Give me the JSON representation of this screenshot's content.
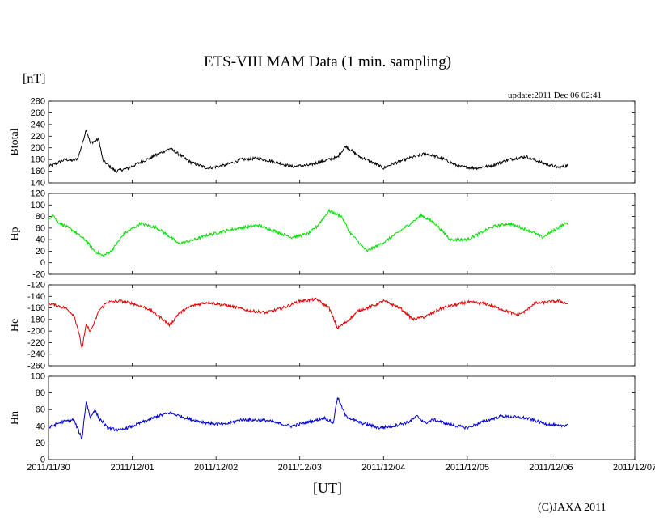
{
  "header": {
    "title": "ETS-VIII MAM Data (1 min. sampling)",
    "unit": "[nT]",
    "update": "update:2011 Dec 06 02:41"
  },
  "footer": {
    "xlabel": "[UT]",
    "copyright": "(C)JAXA 2011"
  },
  "chart_data": {
    "type": "line",
    "x_range": [
      "2011-11-30T00:00",
      "2011-12-07T00:00"
    ],
    "x_ticks": [
      "2011/11/30",
      "2011/12/01",
      "2011/12/02",
      "2011/12/03",
      "2011/12/04",
      "2011/12/05",
      "2011/12/06",
      "2011/12/07"
    ],
    "xlabel": "[UT]",
    "panels": [
      {
        "name": "Btotal",
        "color": "#000000",
        "ylim": [
          140,
          280
        ],
        "yticks": [
          140,
          160,
          180,
          200,
          220,
          240,
          260,
          280
        ],
        "x_days": [
          0,
          0.12,
          0.2,
          0.3,
          0.35,
          0.4,
          0.45,
          0.5,
          0.6,
          0.65,
          0.8,
          0.95,
          1.05,
          1.25,
          1.45,
          1.7,
          1.9,
          2.1,
          2.3,
          2.5,
          2.7,
          2.9,
          3.1,
          3.3,
          3.45,
          3.55,
          3.7,
          3.9,
          4.0,
          4.1,
          4.3,
          4.5,
          4.7,
          4.9,
          5.1,
          5.3,
          5.5,
          5.7,
          5.9,
          6.1,
          6.2
        ],
        "values": [
          168,
          175,
          180,
          178,
          182,
          205,
          232,
          208,
          215,
          178,
          160,
          165,
          172,
          185,
          199,
          175,
          165,
          170,
          180,
          182,
          176,
          168,
          170,
          178,
          184,
          203,
          186,
          173,
          165,
          172,
          182,
          190,
          182,
          168,
          165,
          170,
          180,
          185,
          174,
          166,
          170
        ]
      },
      {
        "name": "Hp",
        "color": "#00e000",
        "ylim": [
          -20,
          120
        ],
        "yticks": [
          -20,
          0,
          20,
          40,
          60,
          80,
          100,
          120
        ],
        "x_days": [
          0,
          0.05,
          0.1,
          0.3,
          0.45,
          0.55,
          0.65,
          0.75,
          0.9,
          1.1,
          1.3,
          1.45,
          1.55,
          1.7,
          1.9,
          2.2,
          2.5,
          2.7,
          2.9,
          3.1,
          3.2,
          3.35,
          3.5,
          3.6,
          3.8,
          4.0,
          4.2,
          4.45,
          4.6,
          4.8,
          5.0,
          5.3,
          5.5,
          5.75,
          5.9,
          6.1,
          6.2
        ],
        "values": [
          72,
          85,
          72,
          55,
          38,
          20,
          12,
          20,
          50,
          68,
          60,
          45,
          33,
          38,
          48,
          58,
          65,
          55,
          44,
          50,
          62,
          90,
          80,
          52,
          20,
          35,
          55,
          82,
          70,
          40,
          40,
          62,
          68,
          55,
          44,
          62,
          70
        ]
      },
      {
        "name": "He",
        "color": "#e00000",
        "ylim": [
          -260,
          -120
        ],
        "yticks": [
          -260,
          -240,
          -220,
          -200,
          -180,
          -160,
          -140,
          -120
        ],
        "x_days": [
          0,
          0.2,
          0.3,
          0.35,
          0.4,
          0.45,
          0.5,
          0.55,
          0.6,
          0.7,
          0.85,
          1.0,
          1.2,
          1.35,
          1.45,
          1.55,
          1.7,
          1.9,
          2.2,
          2.4,
          2.6,
          2.8,
          3.0,
          3.2,
          3.35,
          3.45,
          3.55,
          3.7,
          3.9,
          4.0,
          4.2,
          4.35,
          4.5,
          4.7,
          5.0,
          5.2,
          5.4,
          5.6,
          5.7,
          5.8,
          6.1,
          6.2
        ],
        "values": [
          -152,
          -160,
          -172,
          -195,
          -230,
          -190,
          -200,
          -185,
          -165,
          -150,
          -148,
          -152,
          -162,
          -178,
          -190,
          -170,
          -157,
          -150,
          -158,
          -165,
          -168,
          -160,
          -148,
          -145,
          -160,
          -195,
          -185,
          -165,
          -155,
          -148,
          -160,
          -180,
          -175,
          -160,
          -150,
          -152,
          -162,
          -172,
          -165,
          -152,
          -148,
          -153
        ]
      },
      {
        "name": "Hn",
        "color": "#0000d0",
        "ylim": [
          0,
          100
        ],
        "yticks": [
          0,
          20,
          40,
          60,
          80,
          100
        ],
        "x_days": [
          0,
          0.15,
          0.3,
          0.4,
          0.45,
          0.5,
          0.55,
          0.6,
          0.65,
          0.7,
          0.85,
          1.0,
          1.15,
          1.3,
          1.45,
          1.7,
          1.9,
          2.1,
          2.3,
          2.6,
          2.9,
          3.1,
          3.3,
          3.4,
          3.45,
          3.55,
          3.7,
          3.95,
          4.1,
          4.3,
          4.4,
          4.5,
          4.6,
          4.8,
          5.0,
          5.2,
          5.4,
          5.7,
          5.9,
          6.1,
          6.2
        ],
        "values": [
          38,
          45,
          48,
          25,
          70,
          50,
          60,
          50,
          45,
          38,
          35,
          40,
          46,
          52,
          56,
          48,
          44,
          42,
          48,
          47,
          40,
          45,
          50,
          44,
          75,
          52,
          45,
          38,
          40,
          45,
          52,
          44,
          48,
          42,
          38,
          46,
          52,
          50,
          44,
          40,
          42
        ]
      }
    ]
  }
}
